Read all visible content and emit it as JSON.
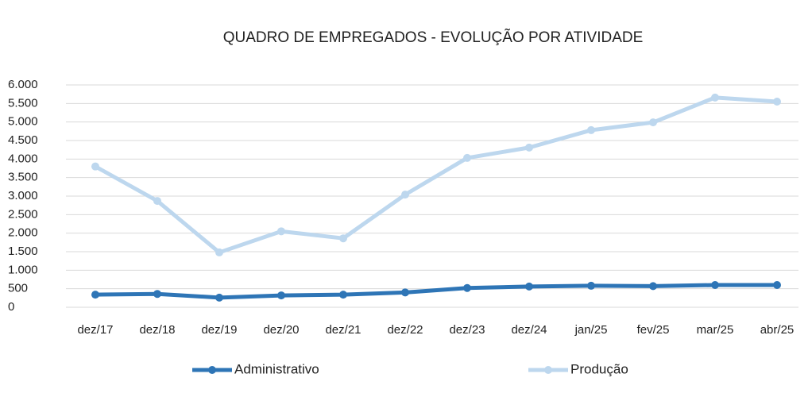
{
  "chart_data": {
    "type": "line",
    "title": "QUADRO DE EMPREGADOS - EVOLUÇÃO POR ATIVIDADE",
    "categories": [
      "dez/17",
      "dez/18",
      "dez/19",
      "dez/20",
      "dez/21",
      "dez/22",
      "dez/23",
      "dez/24",
      "jan/25",
      "fev/25",
      "mar/25",
      "abr/25"
    ],
    "series": [
      {
        "name": "Administrativo",
        "color": "#2e75b6",
        "values": [
          340,
          360,
          260,
          320,
          340,
          400,
          520,
          560,
          580,
          570,
          600,
          600
        ]
      },
      {
        "name": "Produção",
        "color": "#bdd7ee",
        "values": [
          3800,
          2870,
          1480,
          2050,
          1860,
          3040,
          4030,
          4310,
          4780,
          4990,
          5660,
          5550
        ]
      }
    ],
    "ylim": [
      0,
      6000
    ],
    "yticks": [
      0,
      500,
      {
        "value": 1000,
        "label": "1.000"
      },
      {
        "value": 1500,
        "label": "1.500"
      },
      {
        "value": 2000,
        "label": "2.000"
      },
      {
        "value": 2500,
        "label": "2.500"
      },
      {
        "value": 3000,
        "label": "3.000"
      },
      {
        "value": 3500,
        "label": "3.500"
      },
      {
        "value": 4000,
        "label": "4.000"
      },
      {
        "value": 4500,
        "label": "4.500"
      },
      {
        "value": 5000,
        "label": "5.000"
      },
      {
        "value": 5500,
        "label": "5.500"
      },
      {
        "value": 6000,
        "label": "6.000"
      }
    ],
    "grid": true,
    "legend": "bottom"
  }
}
